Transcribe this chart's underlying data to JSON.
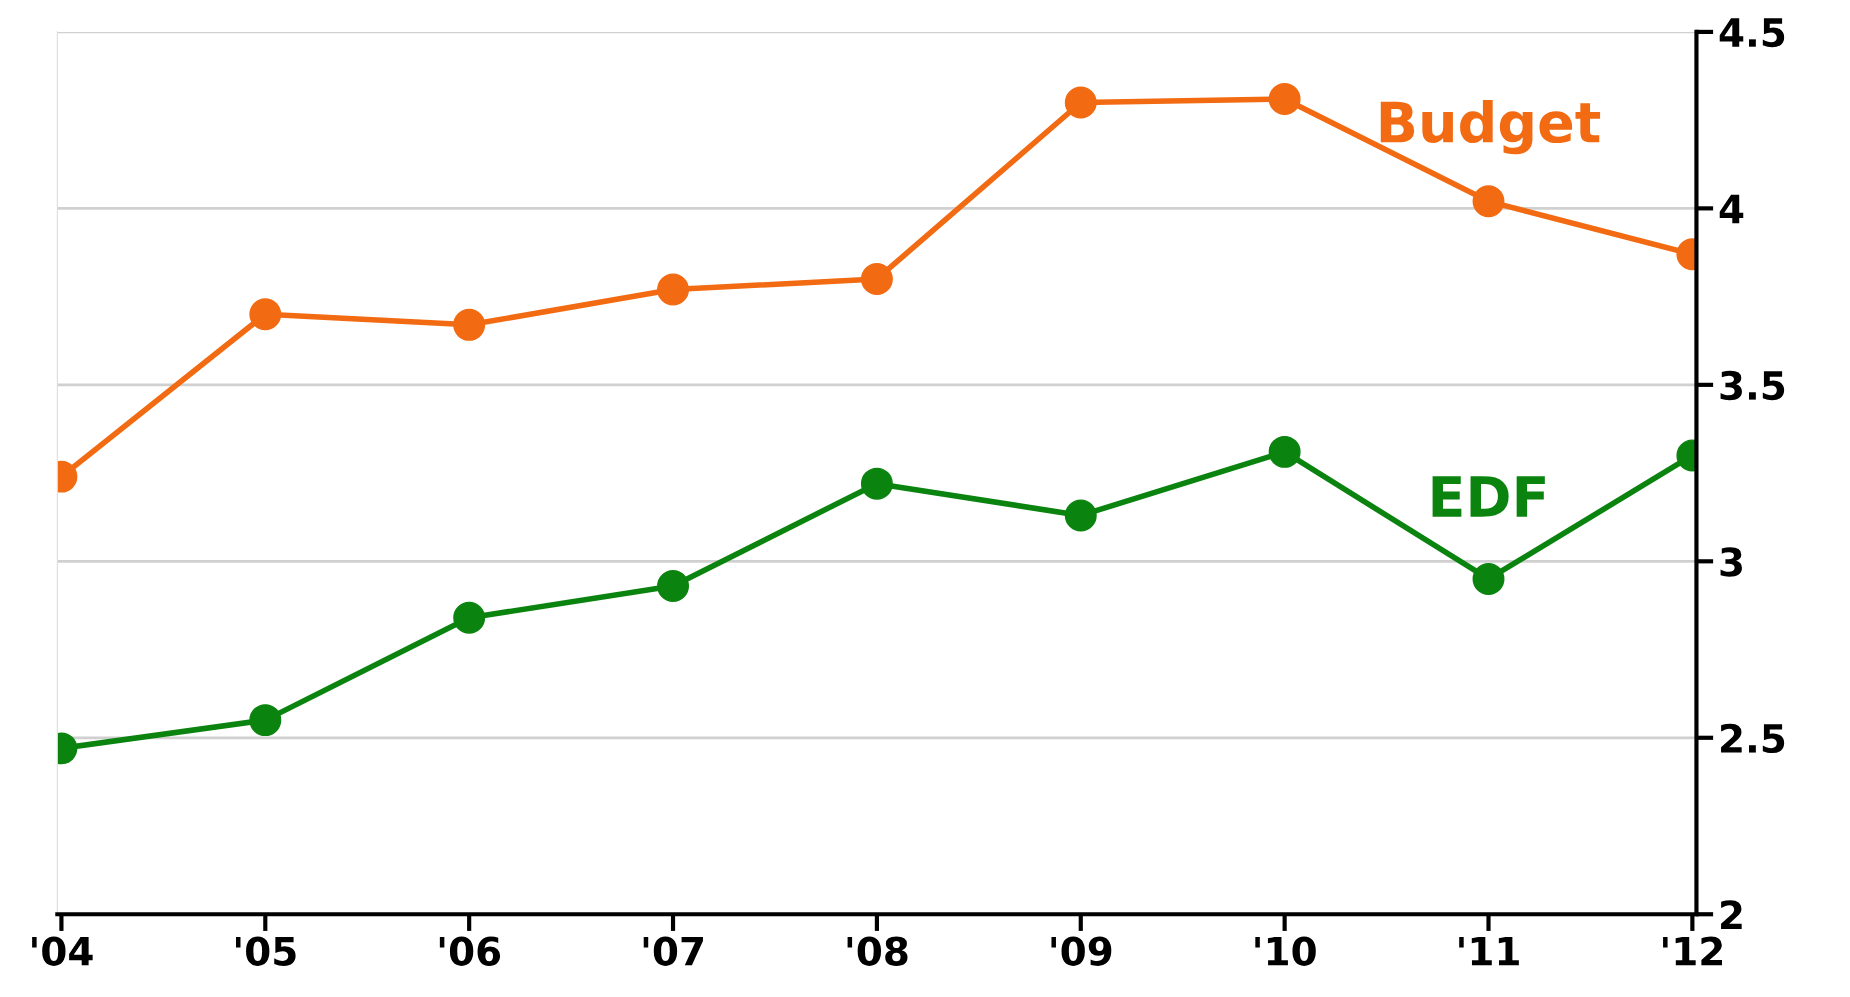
{
  "chart_data": {
    "type": "line",
    "categories": [
      "'04",
      "'05",
      "'06",
      "'07",
      "'08",
      "'09",
      "'10",
      "'11",
      "'12"
    ],
    "series": [
      {
        "name": "Budget",
        "color": "#f26b12",
        "values": [
          3.24,
          3.7,
          3.67,
          3.77,
          3.8,
          4.3,
          4.31,
          4.02,
          3.87
        ]
      },
      {
        "name": "EDF",
        "color": "#0b840f",
        "values": [
          2.47,
          2.55,
          2.84,
          2.93,
          3.22,
          3.13,
          3.31,
          2.95,
          3.3
        ]
      }
    ],
    "ylim": [
      2,
      4.5
    ],
    "yticks": [
      2,
      2.5,
      3,
      3.5,
      4,
      4.5
    ],
    "grid": "y",
    "legend": false,
    "marker": "circle",
    "line_style": "solid"
  }
}
